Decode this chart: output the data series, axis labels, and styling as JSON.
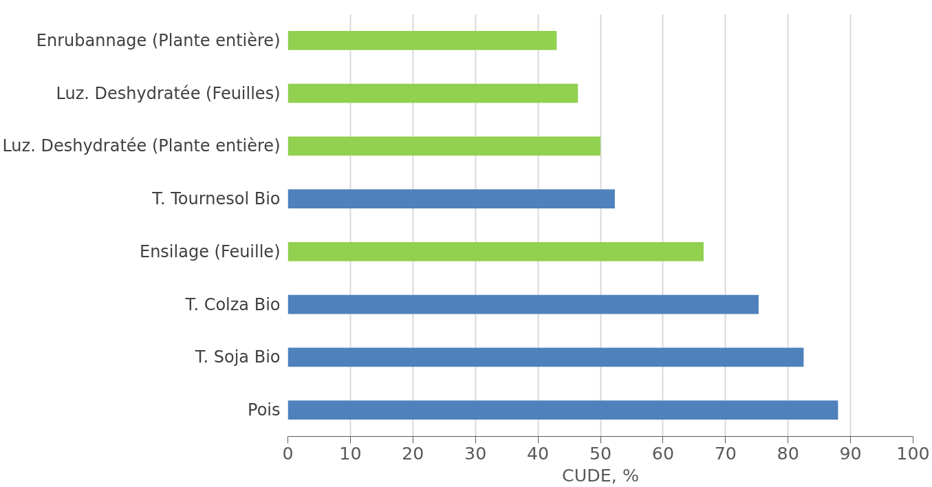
{
  "chart_data": {
    "type": "bar",
    "orientation": "horizontal",
    "xlabel": "CUDE, %",
    "categories": [
      "Enrubannage (Plante entière)",
      "Luz. Deshydratée (Feuilles)",
      "Luz. Deshydratée (Plante entière)",
      "T. Tournesol Bio",
      "Ensilage (Feuille)",
      "T. Colza Bio",
      "T. Soja Bio",
      "Pois"
    ],
    "values": [
      43.0,
      46.4,
      50.0,
      52.3,
      66.5,
      75.3,
      82.5,
      88.0
    ],
    "colors": [
      "#92d050",
      "#92d050",
      "#92d050",
      "#4f81bd",
      "#92d050",
      "#4f81bd",
      "#4f81bd",
      "#4f81bd"
    ],
    "xlim": [
      0,
      100
    ],
    "xticks": [
      0,
      10,
      20,
      30,
      40,
      50,
      60,
      70,
      80,
      90,
      100
    ],
    "grid": "x"
  }
}
